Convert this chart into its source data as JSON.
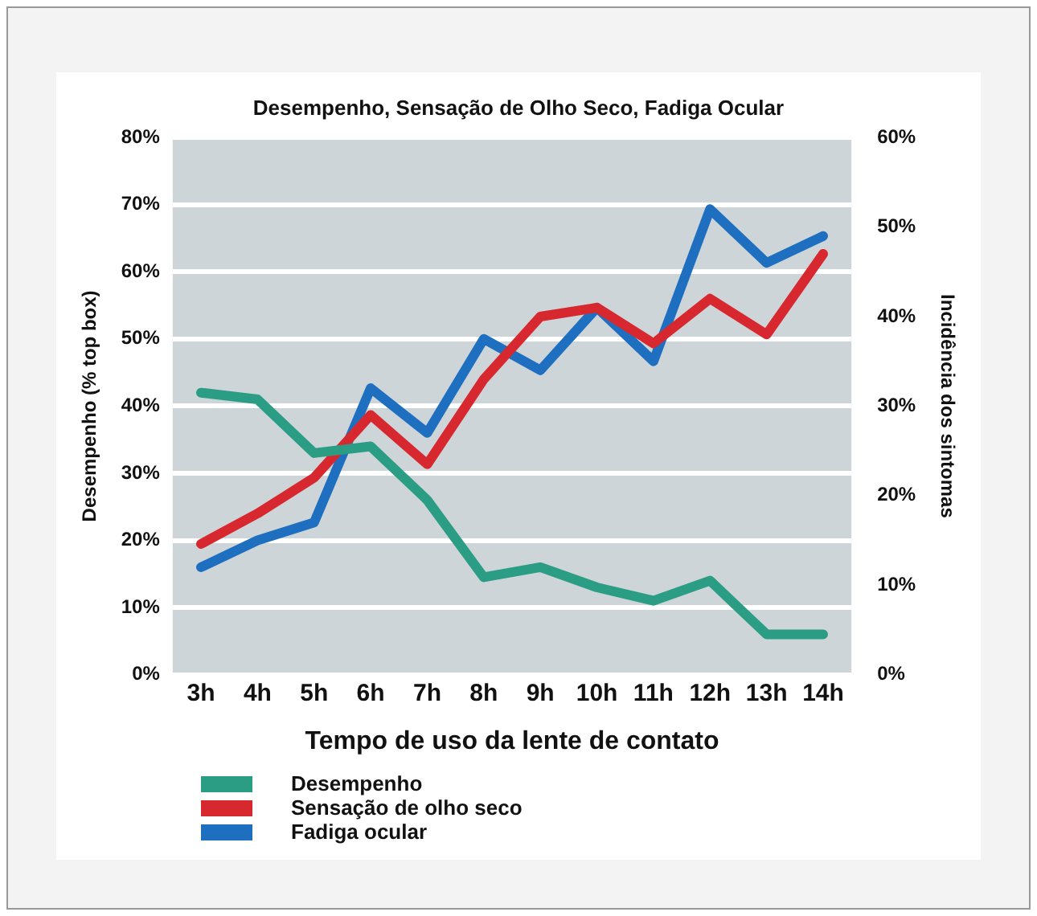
{
  "chart_data": {
    "type": "line",
    "title": "Desempenho, Sensação de Olho Seco, Fadiga Ocular",
    "xlabel": "Tempo de uso da lente de contato",
    "ylabel": "Desempenho (% top box)",
    "y2label": "Incidência dos sintomas",
    "categories": [
      "3h",
      "4h",
      "5h",
      "6h",
      "7h",
      "8h",
      "9h",
      "10h",
      "11h",
      "12h",
      "13h",
      "14h"
    ],
    "series": [
      {
        "name": "Desempenho",
        "color": "#2a9d84",
        "values": [
          42,
          41,
          33,
          34,
          26,
          14.5,
          16,
          13,
          11,
          14,
          6,
          6
        ]
      },
      {
        "name": "Sensação de olho seco",
        "color": "#d7282f",
        "axis": "y2",
        "values": [
          14.6,
          18,
          22,
          29,
          23.5,
          33,
          40,
          41,
          37,
          42,
          38,
          47
        ]
      },
      {
        "name": "Fadiga ocular",
        "color": "#1f6fc0",
        "axis": "y2",
        "values": [
          12,
          15,
          17,
          32,
          27,
          37.5,
          34,
          41,
          35,
          52,
          46,
          49
        ]
      }
    ],
    "ylim": [
      0,
      80
    ],
    "yticks": [
      {
        "value": 0,
        "label": "0%"
      },
      {
        "value": 10,
        "label": "10%"
      },
      {
        "value": 20,
        "label": "20%"
      },
      {
        "value": 30,
        "label": "30%"
      },
      {
        "value": 40,
        "label": "40%"
      },
      {
        "value": 50,
        "label": "50%"
      },
      {
        "value": 60,
        "label": "60%"
      },
      {
        "value": 70,
        "label": "70%"
      },
      {
        "value": 80,
        "label": "80%"
      }
    ],
    "y2lim": [
      0,
      60
    ],
    "y2ticks": [
      {
        "value": 0,
        "label": "0%"
      },
      {
        "value": 10,
        "label": "10%"
      },
      {
        "value": 20,
        "label": "20%"
      },
      {
        "value": 30,
        "label": "30%"
      },
      {
        "value": 40,
        "label": "40%"
      },
      {
        "value": 50,
        "label": "50%"
      },
      {
        "value": 60,
        "label": "60%"
      }
    ],
    "grid": "y",
    "legend": "bottom",
    "marker": "none",
    "line_style": "solid"
  }
}
